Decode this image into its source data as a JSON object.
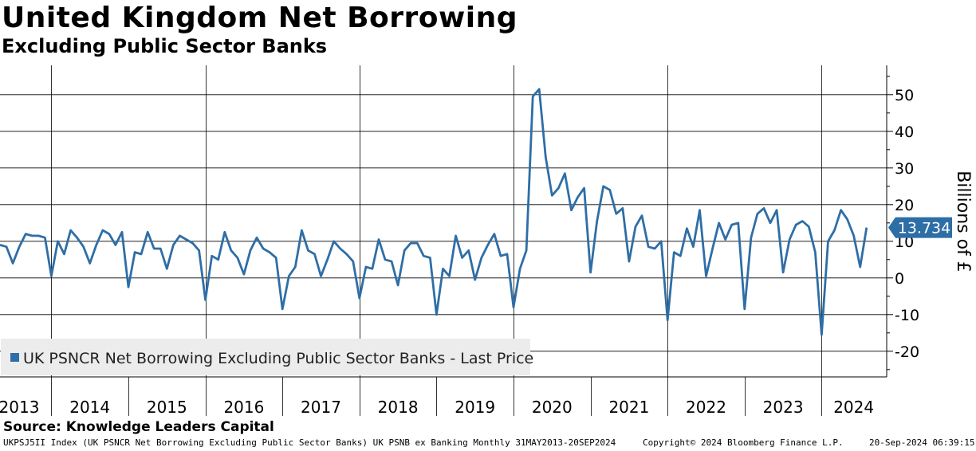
{
  "header": {
    "title": "United Kingdom Net Borrowing",
    "subtitle": "Excluding Public Sector Banks"
  },
  "footer": {
    "source": "Source: Knowledge Leaders Capital",
    "ticker_info": "UKPSJ5II Index (UK PSNCR Net Borrowing Excluding Public Sector Banks) UK PSNB ex Banking  Monthly 31MAY2013-20SEP2024",
    "copyright": "Copyright© 2024 Bloomberg Finance L.P.",
    "timestamp": "20-Sep-2024 06:39:15"
  },
  "chart_data": {
    "type": "line",
    "title": "United Kingdom Net Borrowing",
    "subtitle": "Excluding Public Sector Banks",
    "ylabel": "Billions of £",
    "xlabel": "",
    "ylim": [
      -27,
      58
    ],
    "yticks": [
      -20,
      -10,
      0,
      10,
      20,
      30,
      40,
      50
    ],
    "ytick_labels": [
      "-20",
      "-10",
      "0",
      "10",
      "20",
      "30",
      "40",
      "50"
    ],
    "x_start": "2013-05",
    "frequency": "monthly",
    "year_labels": [
      "2013",
      "2014",
      "2015",
      "2016",
      "2017",
      "2018",
      "2019",
      "2020",
      "2021",
      "2022",
      "2023",
      "2024"
    ],
    "grid": true,
    "last_value_label": "13.734",
    "line_color": "#2e6ea6",
    "legend": {
      "position": "bottom-left",
      "entries": [
        "UK PSNCR Net Borrowing Excluding Public Sector Banks - Last Price"
      ]
    },
    "series": [
      {
        "name": "UK PSNCR Net Borrowing Excluding Public Sector Banks - Last Price",
        "values": [
          9,
          8.5,
          4,
          8.5,
          12,
          11.5,
          11.5,
          11,
          0.5,
          10,
          6.5,
          13,
          11,
          8.5,
          4,
          9,
          13,
          12,
          9,
          12.5,
          -2.5,
          7,
          6.5,
          12.5,
          8,
          8,
          2.5,
          9,
          11.5,
          10.5,
          9.5,
          7.5,
          -6,
          6,
          5,
          12.5,
          7.5,
          5.5,
          1,
          7.5,
          11,
          8,
          7,
          5.5,
          -8.5,
          0.5,
          3,
          13,
          7.5,
          6.5,
          0.5,
          5,
          10,
          8,
          6.5,
          4.5,
          -5.5,
          3,
          2.5,
          10.5,
          5,
          4.5,
          -2,
          7.5,
          9.5,
          9.5,
          6,
          5.5,
          -10,
          2.5,
          0.5,
          11.5,
          5.5,
          7.5,
          -0.5,
          5.5,
          9,
          12,
          6,
          6.5,
          -8,
          2.5,
          7.5,
          49.5,
          51.5,
          33,
          22.5,
          24.5,
          28.5,
          18.5,
          22,
          24.5,
          1.5,
          15.5,
          25,
          24,
          17.5,
          19,
          4.5,
          14,
          17,
          8.5,
          8,
          10,
          -11.5,
          7,
          6,
          13.5,
          8.5,
          18.5,
          0.5,
          8,
          15,
          10.5,
          14.5,
          15,
          -8.5,
          11,
          17.5,
          19,
          15,
          18.5,
          1.5,
          10.5,
          14.5,
          15.5,
          14,
          7,
          -15.5,
          10,
          13,
          18.5,
          16,
          11.5,
          3,
          13.734
        ]
      }
    ]
  }
}
